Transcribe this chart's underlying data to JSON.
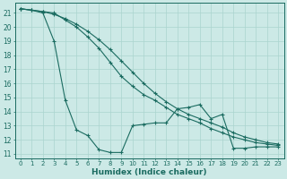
{
  "xlabel": "Humidex (Indice chaleur)",
  "xlim": [
    -0.5,
    23.5
  ],
  "ylim": [
    10.7,
    21.7
  ],
  "yticks": [
    11,
    12,
    13,
    14,
    15,
    16,
    17,
    18,
    19,
    20,
    21
  ],
  "xticks": [
    0,
    1,
    2,
    3,
    4,
    5,
    6,
    7,
    8,
    9,
    10,
    11,
    12,
    13,
    14,
    15,
    16,
    17,
    18,
    19,
    20,
    21,
    22,
    23
  ],
  "bg_color": "#cce9e6",
  "line_color": "#1a6b60",
  "grid_color": "#aad4cf",
  "series1_x": [
    0,
    1,
    2,
    3,
    4,
    5,
    6,
    7,
    8,
    9,
    10,
    11,
    12,
    13,
    14,
    15,
    16,
    17,
    18,
    19,
    20,
    21,
    22,
    23
  ],
  "series1_y": [
    21.3,
    21.2,
    21.0,
    19.0,
    14.8,
    12.7,
    12.3,
    11.3,
    11.1,
    11.1,
    13.0,
    13.1,
    13.2,
    13.2,
    14.2,
    14.3,
    14.5,
    13.5,
    13.8,
    11.4,
    11.4,
    11.5,
    11.5,
    11.5
  ],
  "series2_x": [
    0,
    1,
    2,
    3,
    4,
    5,
    6,
    7,
    8,
    9,
    10,
    11,
    12,
    13,
    14,
    15,
    16,
    17,
    18,
    19,
    20,
    21,
    22,
    23
  ],
  "series2_y": [
    21.3,
    21.2,
    21.1,
    21.0,
    20.5,
    20.0,
    19.3,
    18.5,
    17.5,
    16.5,
    15.8,
    15.2,
    14.8,
    14.3,
    13.8,
    13.5,
    13.2,
    12.8,
    12.5,
    12.2,
    12.0,
    11.8,
    11.7,
    11.6
  ],
  "series3_x": [
    0,
    1,
    2,
    3,
    4,
    5,
    6,
    7,
    8,
    9,
    10,
    11,
    12,
    13,
    14,
    15,
    16,
    17,
    18,
    19,
    20,
    21,
    22,
    23
  ],
  "series3_y": [
    21.3,
    21.2,
    21.1,
    20.9,
    20.6,
    20.2,
    19.7,
    19.1,
    18.4,
    17.6,
    16.8,
    16.0,
    15.3,
    14.7,
    14.2,
    13.8,
    13.5,
    13.2,
    12.9,
    12.5,
    12.2,
    12.0,
    11.8,
    11.7
  ]
}
